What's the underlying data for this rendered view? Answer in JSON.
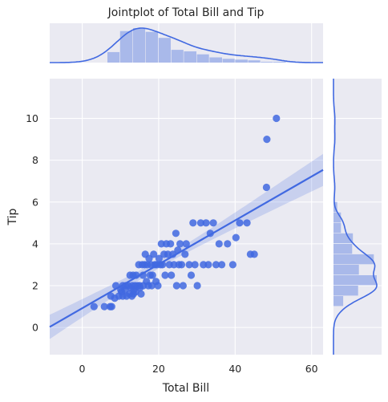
{
  "chart_data": {
    "type": "scatter",
    "title": "Jointplot of Total Bill and Tip",
    "xlabel": "Total Bill",
    "ylabel": "Tip",
    "xlim": [
      -8.5,
      63
    ],
    "ylim": [
      -1.3,
      11.9
    ],
    "x_ticks": [
      0,
      20,
      40,
      60
    ],
    "y_ticks": [
      0,
      2,
      4,
      6,
      8,
      10
    ],
    "grid": true,
    "colors": {
      "points": "#4169e1",
      "line": "#4169e1",
      "band": "#c4cff0",
      "hist": "#a9b9ea",
      "background": "#eaeaf2",
      "grid": "#ffffff"
    },
    "regression": {
      "slope": 0.105,
      "intercept": 0.92
    },
    "marginal_x": {
      "bin_edges": [
        6.6,
        9.9,
        13.3,
        16.6,
        20.0,
        23.3,
        26.6,
        30.0,
        33.3,
        36.7,
        40.0,
        43.4,
        46.7,
        50.0,
        53.4
      ],
      "counts": [
        14,
        42,
        46,
        41,
        33,
        17,
        15,
        11,
        7,
        5,
        4,
        3,
        1,
        1
      ]
    },
    "marginal_y": {
      "bin_edges": [
        1.0,
        1.5,
        2.0,
        2.5,
        3.0,
        3.5,
        4.0,
        4.5,
        5.0,
        5.5,
        6.0
      ],
      "counts": [
        13,
        33,
        58,
        34,
        54,
        25,
        26,
        10,
        10,
        5
      ]
    },
    "points": [
      [
        3.1,
        1.0
      ],
      [
        5.8,
        1.0
      ],
      [
        7.3,
        1.0
      ],
      [
        7.5,
        1.5
      ],
      [
        7.7,
        1.0
      ],
      [
        8.5,
        1.4
      ],
      [
        8.8,
        2.0
      ],
      [
        9.6,
        1.5
      ],
      [
        10.1,
        1.8
      ],
      [
        10.3,
        1.7
      ],
      [
        10.6,
        1.5
      ],
      [
        10.6,
        2.0
      ],
      [
        11.2,
        1.8
      ],
      [
        11.4,
        2.0
      ],
      [
        11.6,
        1.5
      ],
      [
        12.0,
        2.0
      ],
      [
        12.4,
        1.6
      ],
      [
        12.5,
        2.5
      ],
      [
        12.7,
        1.9
      ],
      [
        13.0,
        1.5
      ],
      [
        13.1,
        2.0
      ],
      [
        13.3,
        2.5
      ],
      [
        13.4,
        1.6
      ],
      [
        13.5,
        1.8
      ],
      [
        13.8,
        2.0
      ],
      [
        14.0,
        1.7
      ],
      [
        14.1,
        2.5
      ],
      [
        14.5,
        2.0
      ],
      [
        14.8,
        3.0
      ],
      [
        15.0,
        2.0
      ],
      [
        15.1,
        1.9
      ],
      [
        15.4,
        1.6
      ],
      [
        15.7,
        3.0
      ],
      [
        15.9,
        2.5
      ],
      [
        16.0,
        2.0
      ],
      [
        16.3,
        3.0
      ],
      [
        16.5,
        3.5
      ],
      [
        16.8,
        2.2
      ],
      [
        17.0,
        3.0
      ],
      [
        17.3,
        2.0
      ],
      [
        17.5,
        3.3
      ],
      [
        17.8,
        2.5
      ],
      [
        18.0,
        3.0
      ],
      [
        18.2,
        2.0
      ],
      [
        18.4,
        2.5
      ],
      [
        18.7,
        3.5
      ],
      [
        19.0,
        3.0
      ],
      [
        19.3,
        2.2
      ],
      [
        19.5,
        3.0
      ],
      [
        19.8,
        2.0
      ],
      [
        20.1,
        3.3
      ],
      [
        20.5,
        3.0
      ],
      [
        20.7,
        4.0
      ],
      [
        21.0,
        3.0
      ],
      [
        21.4,
        3.5
      ],
      [
        21.7,
        2.5
      ],
      [
        22.0,
        4.0
      ],
      [
        22.4,
        3.5
      ],
      [
        22.8,
        3.0
      ],
      [
        23.1,
        4.0
      ],
      [
        23.3,
        2.5
      ],
      [
        23.7,
        3.5
      ],
      [
        24.0,
        3.0
      ],
      [
        24.5,
        4.5
      ],
      [
        24.7,
        2.0
      ],
      [
        25.0,
        3.7
      ],
      [
        25.3,
        3.0
      ],
      [
        25.6,
        4.0
      ],
      [
        26.0,
        3.0
      ],
      [
        26.4,
        2.0
      ],
      [
        26.9,
        3.5
      ],
      [
        27.2,
        4.0
      ],
      [
        28.0,
        3.0
      ],
      [
        28.5,
        2.5
      ],
      [
        29.0,
        5.0
      ],
      [
        29.5,
        3.0
      ],
      [
        30.1,
        2.0
      ],
      [
        31.0,
        5.0
      ],
      [
        31.7,
        3.0
      ],
      [
        32.4,
        5.0
      ],
      [
        33.0,
        3.0
      ],
      [
        33.5,
        4.5
      ],
      [
        34.3,
        5.0
      ],
      [
        35.0,
        3.0
      ],
      [
        35.8,
        4.0
      ],
      [
        36.5,
        3.0
      ],
      [
        38.0,
        4.0
      ],
      [
        39.4,
        3.0
      ],
      [
        40.2,
        4.3
      ],
      [
        41.2,
        5.0
      ],
      [
        43.1,
        5.0
      ],
      [
        44.0,
        3.5
      ],
      [
        45.0,
        3.5
      ],
      [
        48.2,
        6.7
      ],
      [
        48.3,
        9.0
      ],
      [
        50.8,
        10.0
      ]
    ]
  }
}
